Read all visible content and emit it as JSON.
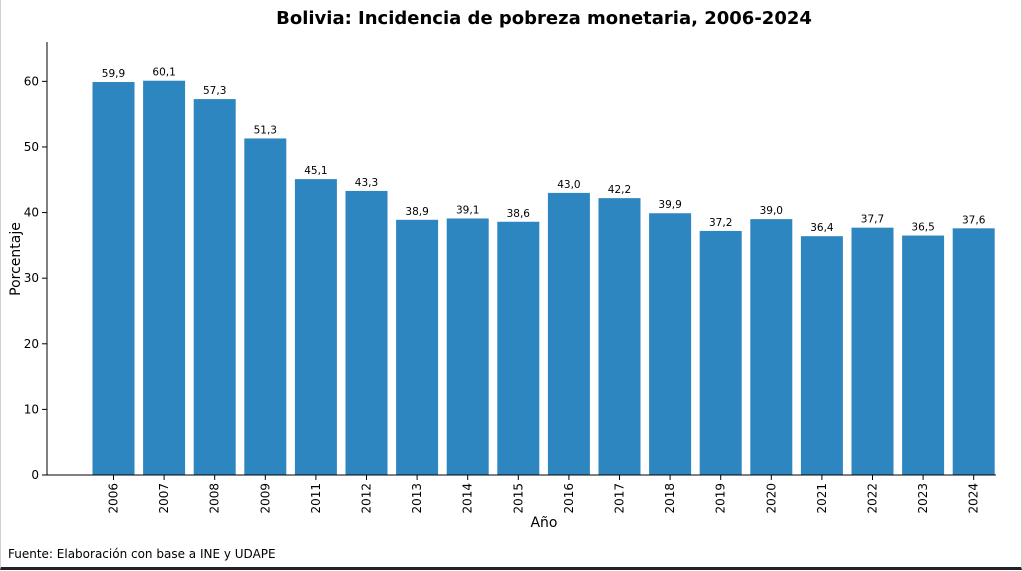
{
  "chart_data": {
    "type": "bar",
    "title": "Bolivia: Incidencia de pobreza monetaria, 2006-2024",
    "xlabel": "Año",
    "ylabel": "Porcentaje",
    "categories": [
      "2006",
      "2007",
      "2008",
      "2009",
      "2011",
      "2012",
      "2013",
      "2014",
      "2015",
      "2016",
      "2017",
      "2018",
      "2019",
      "2020",
      "2021",
      "2022",
      "2023",
      "2024"
    ],
    "values": [
      59.9,
      60.1,
      57.3,
      51.3,
      45.1,
      43.3,
      38.9,
      39.1,
      38.6,
      43.0,
      42.2,
      39.9,
      37.2,
      39.0,
      36.4,
      37.7,
      36.5,
      37.6
    ],
    "value_labels": [
      "59,9",
      "60,1",
      "57,3",
      "51,3",
      "45,1",
      "43,3",
      "38,9",
      "39,1",
      "38,6",
      "43,0",
      "42,2",
      "39,9",
      "37,2",
      "39,0",
      "36,4",
      "37,7",
      "36,5",
      "37,6"
    ],
    "yticks": [
      0,
      10,
      20,
      30,
      40,
      50,
      60
    ],
    "ylim": [
      0,
      66
    ],
    "bar_color": "#2e86c1",
    "grid": false
  },
  "source": "Fuente: Elaboración con base a INE y UDAPE"
}
